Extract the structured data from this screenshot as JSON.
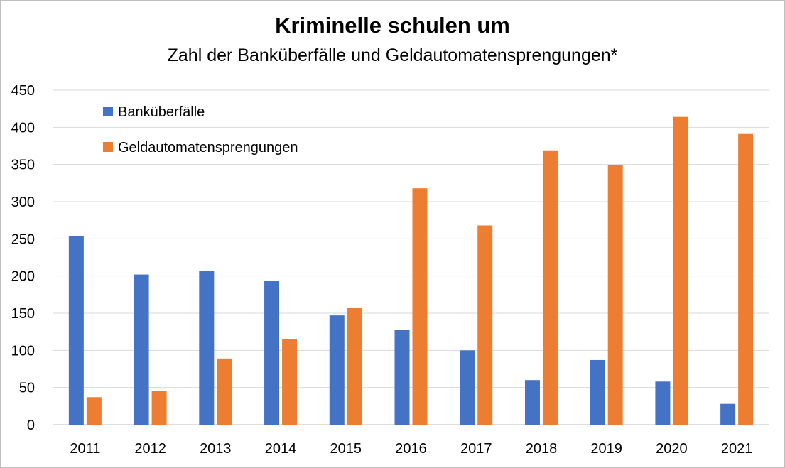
{
  "chart_data": {
    "type": "bar",
    "title": "Kriminelle schulen um",
    "subtitle": "Zahl der Banküberfälle und Geldautomatensprengungen*",
    "categories": [
      "2011",
      "2012",
      "2013",
      "2014",
      "2015",
      "2016",
      "2017",
      "2018",
      "2019",
      "2020",
      "2021"
    ],
    "series": [
      {
        "name": "Banküberfälle",
        "color": "#4472c4",
        "values": [
          254,
          202,
          207,
          193,
          147,
          128,
          100,
          60,
          87,
          58,
          28
        ]
      },
      {
        "name": "Geldautomatensprengungen",
        "color": "#ed7d31",
        "values": [
          37,
          45,
          89,
          115,
          157,
          318,
          268,
          369,
          349,
          414,
          392
        ]
      }
    ],
    "ylim": [
      0,
      450
    ],
    "yticks": [
      0,
      50,
      100,
      150,
      200,
      250,
      300,
      350,
      400,
      450
    ],
    "grid": true,
    "legend_position": "top-left"
  }
}
